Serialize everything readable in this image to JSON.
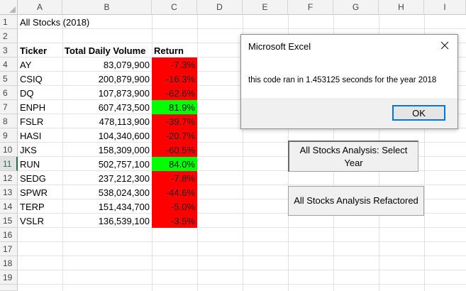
{
  "columns": [
    "A",
    "B",
    "C",
    "D",
    "E",
    "F",
    "G",
    "H",
    "I"
  ],
  "rows": [
    "1",
    "2",
    "3",
    "4",
    "5",
    "6",
    "7",
    "8",
    "9",
    "10",
    "11",
    "12",
    "13",
    "14",
    "15",
    "16",
    "17",
    "18",
    "19"
  ],
  "sheet": {
    "title": "All Stocks (2018)",
    "headers": {
      "ticker": "Ticker",
      "volume": "Total Daily Volume",
      "return": "Return"
    },
    "data": [
      {
        "ticker": "AY",
        "volume": "83,079,900",
        "return": "-7.3%",
        "status": "negative"
      },
      {
        "ticker": "CSIQ",
        "volume": "200,879,900",
        "return": "-16.3%",
        "status": "negative"
      },
      {
        "ticker": "DQ",
        "volume": "107,873,900",
        "return": "-62.6%",
        "status": "negative"
      },
      {
        "ticker": "ENPH",
        "volume": "607,473,500",
        "return": "81.9%",
        "status": "positive"
      },
      {
        "ticker": "FSLR",
        "volume": "478,113,900",
        "return": "-39.7%",
        "status": "negative"
      },
      {
        "ticker": "HASI",
        "volume": "104,340,600",
        "return": "-20.7%",
        "status": "negative"
      },
      {
        "ticker": "JKS",
        "volume": "158,309,000",
        "return": "-60.5%",
        "status": "negative"
      },
      {
        "ticker": "RUN",
        "volume": "502,757,100",
        "return": "84.0%",
        "status": "positive"
      },
      {
        "ticker": "SEDG",
        "volume": "237,212,300",
        "return": "-7.8%",
        "status": "negative"
      },
      {
        "ticker": "SPWR",
        "volume": "538,024,300",
        "return": "-44.6%",
        "status": "negative"
      },
      {
        "ticker": "TERP",
        "volume": "151,434,700",
        "return": "-5.0%",
        "status": "negative"
      },
      {
        "ticker": "VSLR",
        "volume": "136,539,100",
        "return": "-3.5%",
        "status": "negative"
      }
    ],
    "selected_row": "11"
  },
  "buttons": {
    "select_year": "All Stocks Analysis: Select Year",
    "refactored": "All Stocks Analysis Refactored"
  },
  "dialog": {
    "title": "Microsoft Excel",
    "message": "this code ran in 1.453125 seconds for the year 2018",
    "ok_label": "OK",
    "close_icon": "close-icon"
  },
  "colors": {
    "negative": "#ff0000",
    "positive": "#00ff00",
    "excel_green": "#217346",
    "ok_border": "#0078d7"
  }
}
